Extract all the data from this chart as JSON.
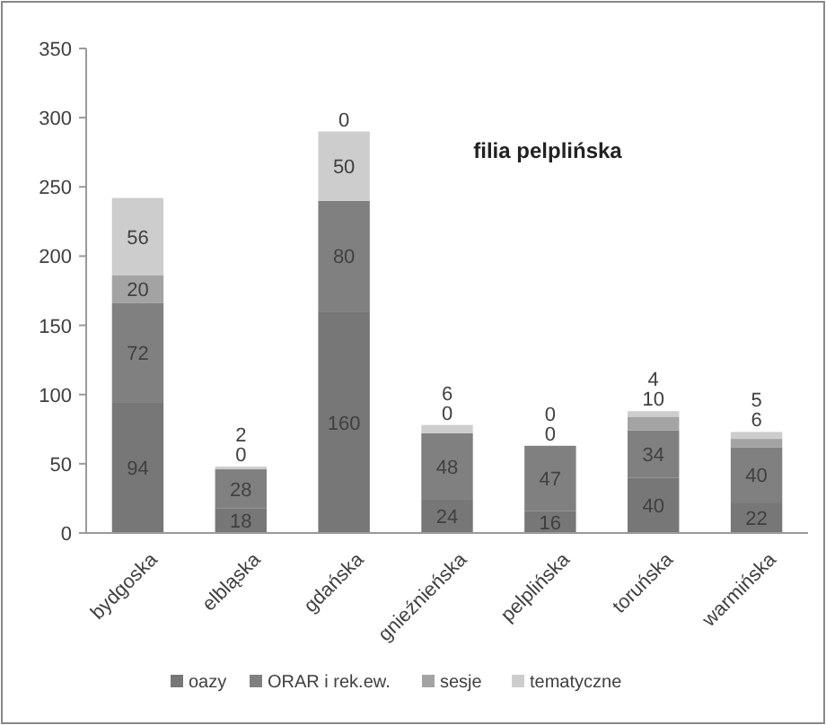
{
  "chart_data": {
    "type": "bar",
    "title": "filia pelplińska",
    "stacked": true,
    "data_labels": true,
    "legend": "bottom",
    "grid": false,
    "categories": [
      "bydgoska",
      "elbląska",
      "gdańska",
      "gnieźnieńska",
      "pelplińska",
      "toruńska",
      "warmińska"
    ],
    "ylim": [
      0,
      350
    ],
    "yticks": [
      0,
      50,
      100,
      150,
      200,
      250,
      300,
      350
    ],
    "series": [
      {
        "name": "oazy",
        "color": "#777777",
        "values": [
          94,
          18,
          160,
          24,
          16,
          40,
          22
        ]
      },
      {
        "name": "ORAR i rek.ew.",
        "color": "#808080",
        "values": [
          72,
          28,
          80,
          48,
          47,
          34,
          40
        ]
      },
      {
        "name": "sesje",
        "color": "#a3a3a3",
        "values": [
          20,
          0,
          0,
          0,
          0,
          10,
          6
        ]
      },
      {
        "name": "tematyczne",
        "color": "#cdcdcd",
        "values": [
          56,
          2,
          50,
          6,
          0,
          4,
          5
        ]
      }
    ]
  }
}
